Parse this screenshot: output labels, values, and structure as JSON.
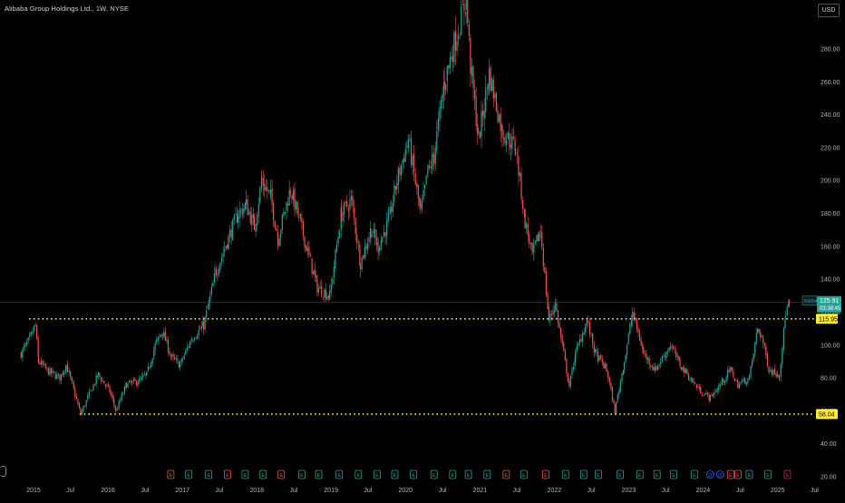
{
  "header": {
    "title": "Alibaba Group Holdings Ltd., 1W, NYSE",
    "currency": "USD"
  },
  "chart_data": {
    "type": "candlestick",
    "symbol": "BABA",
    "interval": "1W",
    "exchange": "NYSE",
    "x_axis": {
      "ticks": [
        "2015",
        "Jul",
        "2016",
        "Jul",
        "2017",
        "Jul",
        "2018",
        "Jul",
        "2019",
        "Jul",
        "2020",
        "Jul",
        "2021",
        "Jul",
        "2022",
        "Jul",
        "2023",
        "Jul",
        "2024",
        "Jul",
        "2025",
        "Jul"
      ]
    },
    "y_axis": {
      "scale": "linear",
      "ylim": [
        20,
        300
      ],
      "ticks": [
        "20.00",
        "40.00",
        "60.00",
        "80.00",
        "100.00",
        "120.00",
        "140.00",
        "160.00",
        "180.00",
        "200.00",
        "220.00",
        "240.00",
        "260.00",
        "280.00"
      ]
    },
    "price_path": [
      [
        "2014-11-01",
        95
      ],
      [
        "2014-12-15",
        104
      ],
      [
        "2015-01-10",
        112
      ],
      [
        "2015-01-25",
        90
      ],
      [
        "2015-03-15",
        84
      ],
      [
        "2015-05-10",
        80
      ],
      [
        "2015-06-10",
        88
      ],
      [
        "2015-07-10",
        76
      ],
      [
        "2015-08-20",
        58
      ],
      [
        "2015-10-01",
        70
      ],
      [
        "2015-11-15",
        82
      ],
      [
        "2016-01-10",
        72
      ],
      [
        "2016-02-10",
        60
      ],
      [
        "2016-04-01",
        76
      ],
      [
        "2016-06-01",
        78
      ],
      [
        "2016-07-10",
        82
      ],
      [
        "2016-08-20",
        100
      ],
      [
        "2016-09-25",
        108
      ],
      [
        "2016-11-10",
        92
      ],
      [
        "2016-12-20",
        88
      ],
      [
        "2017-02-15",
        104
      ],
      [
        "2017-04-15",
        112
      ],
      [
        "2017-05-10",
        125
      ],
      [
        "2017-06-15",
        145
      ],
      [
        "2017-08-15",
        165
      ],
      [
        "2017-10-01",
        180
      ],
      [
        "2017-11-10",
        185
      ],
      [
        "2017-12-20",
        172
      ],
      [
        "2018-01-25",
        200
      ],
      [
        "2018-03-10",
        190
      ],
      [
        "2018-04-15",
        165
      ],
      [
        "2018-06-15",
        195
      ],
      [
        "2018-07-20",
        180
      ],
      [
        "2018-09-01",
        160
      ],
      [
        "2018-10-25",
        135
      ],
      [
        "2018-12-25",
        130
      ],
      [
        "2019-02-20",
        180
      ],
      [
        "2019-04-10",
        188
      ],
      [
        "2019-05-25",
        150
      ],
      [
        "2019-07-15",
        170
      ],
      [
        "2019-08-20",
        160
      ],
      [
        "2019-10-10",
        175
      ],
      [
        "2019-11-20",
        200
      ],
      [
        "2020-01-15",
        225
      ],
      [
        "2020-03-15",
        180
      ],
      [
        "2020-04-20",
        205
      ],
      [
        "2020-05-20",
        215
      ],
      [
        "2020-07-10",
        260
      ],
      [
        "2020-08-20",
        280
      ],
      [
        "2020-10-25",
        310
      ],
      [
        "2020-11-15",
        270
      ],
      [
        "2020-12-25",
        225
      ],
      [
        "2021-02-15",
        265
      ],
      [
        "2021-04-20",
        230
      ],
      [
        "2021-06-25",
        220
      ],
      [
        "2021-08-10",
        175
      ],
      [
        "2021-09-15",
        155
      ],
      [
        "2021-10-25",
        170
      ],
      [
        "2021-12-05",
        115
      ],
      [
        "2022-01-05",
        125
      ],
      [
        "2022-03-15",
        75
      ],
      [
        "2022-04-15",
        95
      ],
      [
        "2022-06-10",
        115
      ],
      [
        "2022-07-20",
        95
      ],
      [
        "2022-09-15",
        85
      ],
      [
        "2022-10-25",
        60
      ],
      [
        "2022-12-10",
        90
      ],
      [
        "2023-01-20",
        120
      ],
      [
        "2023-03-15",
        95
      ],
      [
        "2023-05-10",
        85
      ],
      [
        "2023-07-25",
        100
      ],
      [
        "2023-09-10",
        88
      ],
      [
        "2023-11-10",
        78
      ],
      [
        "2023-12-20",
        72
      ],
      [
        "2024-02-05",
        68
      ],
      [
        "2024-03-20",
        75
      ],
      [
        "2024-05-15",
        85
      ],
      [
        "2024-06-20",
        76
      ],
      [
        "2024-08-15",
        80
      ],
      [
        "2024-09-25",
        110
      ],
      [
        "2024-10-15",
        105
      ],
      [
        "2024-11-20",
        85
      ],
      [
        "2025-01-10",
        82
      ],
      [
        "2025-02-10",
        120
      ],
      [
        "2025-02-28",
        125.91
      ]
    ],
    "last_price": {
      "symbol": "BABA",
      "price": "125.91",
      "countdown": "03:38:45",
      "color": "#26a69a"
    },
    "horizontal_lines": [
      {
        "price": 115.95,
        "label": "115.95",
        "color": "#ffeb3b",
        "style": "dotted",
        "start": "2014-12-10"
      },
      {
        "price": 58.04,
        "label": "58.04",
        "color": "#ffeb3b",
        "style": "dotted",
        "start": "2015-08-15"
      }
    ],
    "event_markers": [
      {
        "date": "2016-11-05",
        "kind": "E",
        "color": "#ef5350"
      },
      {
        "date": "2017-02-01",
        "kind": "E",
        "color": "#26a69a"
      },
      {
        "date": "2017-05-10",
        "kind": "E",
        "color": "#26a69a"
      },
      {
        "date": "2017-08-10",
        "kind": "E",
        "color": "#ef5350"
      },
      {
        "date": "2017-11-05",
        "kind": "E",
        "color": "#26a69a"
      },
      {
        "date": "2018-02-01",
        "kind": "E",
        "color": "#26a69a"
      },
      {
        "date": "2018-05-01",
        "kind": "E",
        "color": "#ef5350"
      },
      {
        "date": "2018-08-10",
        "kind": "E",
        "color": "#26a69a"
      },
      {
        "date": "2018-11-01",
        "kind": "E",
        "color": "#26a69a"
      },
      {
        "date": "2019-02-10",
        "kind": "E",
        "color": "#26a69a"
      },
      {
        "date": "2019-05-15",
        "kind": "E",
        "color": "#26a69a"
      },
      {
        "date": "2019-08-15",
        "kind": "E",
        "color": "#26a69a"
      },
      {
        "date": "2019-11-10",
        "kind": "E",
        "color": "#26a69a"
      },
      {
        "date": "2020-02-10",
        "kind": "E",
        "color": "#26a69a"
      },
      {
        "date": "2020-05-20",
        "kind": "E",
        "color": "#26a69a"
      },
      {
        "date": "2020-08-20",
        "kind": "E",
        "color": "#26a69a"
      },
      {
        "date": "2020-11-05",
        "kind": "E",
        "color": "#26a69a"
      },
      {
        "date": "2021-02-05",
        "kind": "E",
        "color": "#26a69a"
      },
      {
        "date": "2021-05-10",
        "kind": "E",
        "color": "#ef5350"
      },
      {
        "date": "2021-08-05",
        "kind": "E",
        "color": "#26a69a"
      },
      {
        "date": "2021-11-20",
        "kind": "E",
        "color": "#ef5350"
      },
      {
        "date": "2022-02-25",
        "kind": "E",
        "color": "#26a69a"
      },
      {
        "date": "2022-05-25",
        "kind": "E",
        "color": "#26a69a"
      },
      {
        "date": "2022-08-05",
        "kind": "E",
        "color": "#26a69a"
      },
      {
        "date": "2022-11-20",
        "kind": "E",
        "color": "#26a69a"
      },
      {
        "date": "2023-02-25",
        "kind": "E",
        "color": "#26a69a"
      },
      {
        "date": "2023-05-20",
        "kind": "E",
        "color": "#26a69a"
      },
      {
        "date": "2023-08-10",
        "kind": "E",
        "color": "#26a69a"
      },
      {
        "date": "2023-11-20",
        "kind": "E",
        "color": "#26a69a"
      },
      {
        "date": "2024-02-05",
        "kind": "D",
        "color": "#2962ff"
      },
      {
        "date": "2024-03-25",
        "kind": "D",
        "color": "#2962ff"
      },
      {
        "date": "2024-05-15",
        "kind": "E",
        "color": "#ef5350"
      },
      {
        "date": "2024-06-20",
        "kind": "E",
        "color": "#ef5350"
      },
      {
        "date": "2024-08-15",
        "kind": "E",
        "color": "#26a69a"
      },
      {
        "date": "2024-11-15",
        "kind": "E",
        "color": "#26a69a"
      },
      {
        "date": "2025-02-18",
        "kind": "E",
        "color": "#e91e63"
      }
    ]
  }
}
